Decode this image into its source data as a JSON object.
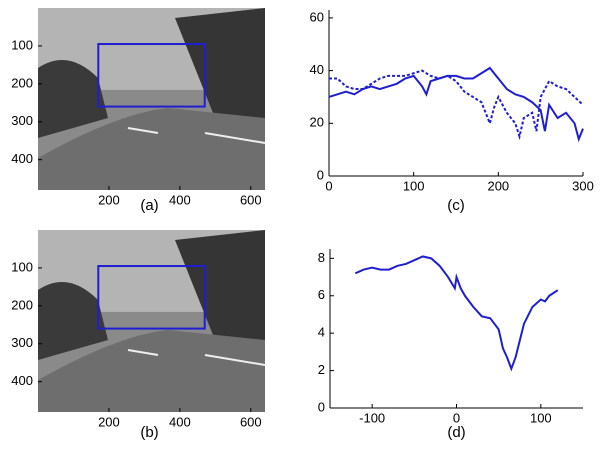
{
  "chart_data": [
    {
      "type": "image",
      "caption": "(a)",
      "xlim": [
        0,
        640
      ],
      "ylim": [
        0,
        480
      ],
      "xticks": [
        200,
        400,
        600
      ],
      "yticks": [
        100,
        200,
        300,
        400
      ],
      "box": {
        "x": [
          170,
          470
        ],
        "y": [
          95,
          260
        ]
      },
      "color": "#1f1fd0"
    },
    {
      "type": "image",
      "caption": "(b)",
      "xlim": [
        0,
        640
      ],
      "ylim": [
        0,
        480
      ],
      "xticks": [
        200,
        400,
        600
      ],
      "yticks": [
        100,
        200,
        300,
        400
      ],
      "box": {
        "x": [
          170,
          470
        ],
        "y": [
          95,
          260
        ]
      },
      "color": "#1f1fd0"
    },
    {
      "type": "line",
      "caption": "(c)",
      "xlim": [
        0,
        300
      ],
      "ylim": [
        0,
        63
      ],
      "xticks": [
        0,
        100,
        200,
        300
      ],
      "yticks": [
        0,
        20,
        40,
        60
      ],
      "series": [
        {
          "color": "#1f1fd0",
          "style": "solid",
          "x": [
            0,
            10,
            20,
            30,
            40,
            50,
            60,
            70,
            80,
            90,
            100,
            110,
            115,
            120,
            130,
            140,
            150,
            160,
            170,
            180,
            190,
            200,
            210,
            220,
            230,
            240,
            250,
            255,
            260,
            270,
            280,
            290,
            295,
            300
          ],
          "values": [
            30,
            31,
            32,
            31,
            33,
            34,
            33,
            34,
            35,
            37,
            38,
            34,
            31,
            36,
            37,
            38,
            38,
            37,
            37,
            39,
            41,
            37,
            33,
            31,
            30,
            28,
            25,
            17,
            27,
            22,
            24,
            20,
            14,
            18
          ]
        },
        {
          "color": "#1f1fd0",
          "style": "dashed",
          "x": [
            0,
            10,
            20,
            30,
            40,
            50,
            60,
            70,
            80,
            90,
            100,
            110,
            120,
            130,
            140,
            150,
            160,
            170,
            180,
            190,
            195,
            200,
            210,
            220,
            225,
            230,
            240,
            245,
            250,
            260,
            270,
            280,
            290,
            300
          ],
          "values": [
            37,
            37,
            34,
            33,
            33,
            35,
            37,
            38,
            38,
            38,
            39,
            40,
            38,
            37,
            38,
            36,
            32,
            30,
            28,
            20,
            26,
            30,
            24,
            20,
            15,
            22,
            24,
            17,
            30,
            36,
            34,
            33,
            30,
            27
          ]
        }
      ]
    },
    {
      "type": "line",
      "caption": "(d)",
      "xlim": [
        -150,
        150
      ],
      "ylim": [
        0,
        8.5
      ],
      "xticks": [
        -100,
        0,
        100
      ],
      "yticks": [
        0,
        2,
        4,
        6,
        8
      ],
      "series": [
        {
          "color": "#1f1fd0",
          "style": "solid",
          "x": [
            -120,
            -110,
            -100,
            -90,
            -80,
            -70,
            -60,
            -50,
            -40,
            -30,
            -20,
            -10,
            -2,
            0,
            5,
            10,
            20,
            30,
            40,
            50,
            55,
            60,
            65,
            70,
            80,
            90,
            100,
            105,
            110,
            120
          ],
          "values": [
            7.2,
            7.4,
            7.5,
            7.4,
            7.4,
            7.6,
            7.7,
            7.9,
            8.1,
            8.0,
            7.6,
            7.0,
            6.4,
            7.0,
            6.4,
            6.0,
            5.4,
            4.9,
            4.8,
            4.2,
            3.2,
            2.7,
            2.1,
            2.7,
            4.5,
            5.4,
            5.8,
            5.7,
            6.0,
            6.3
          ]
        }
      ]
    }
  ]
}
